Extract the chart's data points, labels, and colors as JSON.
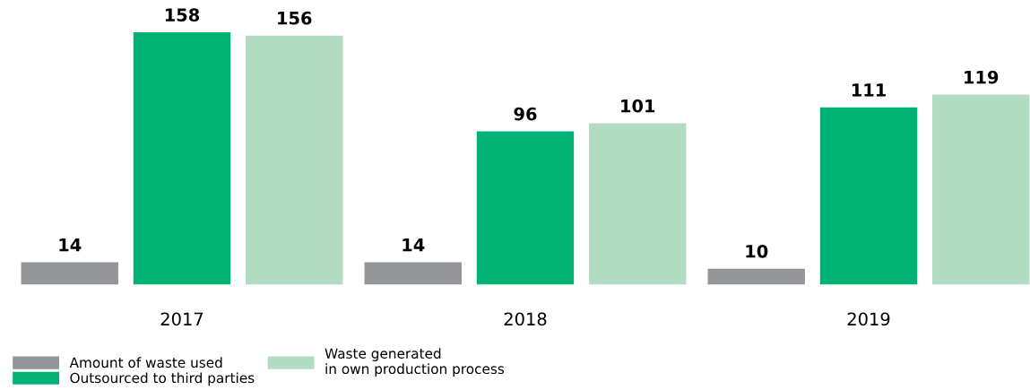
{
  "chart_data": {
    "type": "bar",
    "categories": [
      "2017",
      "2018",
      "2019"
    ],
    "series": [
      {
        "name": "Amount of waste used",
        "color": "#939598",
        "values": [
          14,
          14,
          10
        ]
      },
      {
        "name": "Outsourced to third parties",
        "color": "#00b274",
        "values": [
          158,
          96,
          111
        ]
      },
      {
        "name": "Waste generated\nin own production process",
        "color": "#b1dcc2",
        "values": [
          156,
          101,
          119
        ]
      }
    ],
    "data_labels": true,
    "legend": "bottom left",
    "grid": false
  }
}
